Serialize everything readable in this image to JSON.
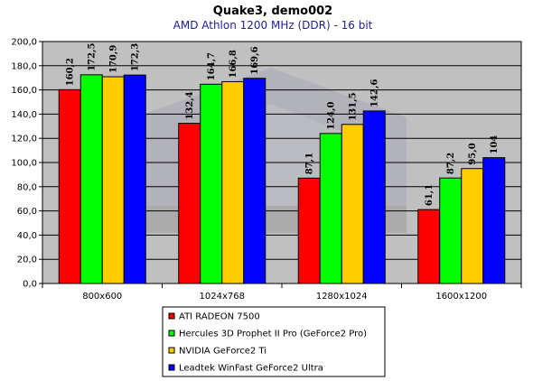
{
  "chart_data": {
    "type": "bar",
    "title": "Quake3, demo002",
    "subtitle": "AMD Athlon 1200 MHz (DDR) - 16 bit",
    "categories": [
      "800x600",
      "1024x768",
      "1280x1024",
      "1600x1200"
    ],
    "ylim": [
      0,
      200
    ],
    "yticks": [
      "0,0",
      "20,0",
      "40,0",
      "60,0",
      "80,0",
      "100,0",
      "120,0",
      "140,0",
      "160,0",
      "180,0",
      "200,0"
    ],
    "grid": true,
    "legend_position": "bottom",
    "series": [
      {
        "name": "ATI RADEON 7500",
        "color": "#ff0000",
        "values": [
          160.2,
          132.4,
          87.1,
          61.1
        ],
        "labels": [
          "160,2",
          "132,4",
          "87,1",
          "61,1"
        ]
      },
      {
        "name": "Hercules 3D Prophet II Pro (GeForce2 Pro)",
        "color": "#00ff00",
        "values": [
          172.5,
          164.7,
          124.0,
          87.2
        ],
        "labels": [
          "172,5",
          "164,7",
          "124,0",
          "87,2"
        ]
      },
      {
        "name": "NVIDIA GeForce2 Ti",
        "color": "#ffcc00",
        "values": [
          170.9,
          166.8,
          131.5,
          95.0
        ],
        "labels": [
          "170,9",
          "166,8",
          "131,5",
          "95,0"
        ]
      },
      {
        "name": "Leadtek WinFast GeForce2 Ultra",
        "color": "#0000ff",
        "values": [
          172.3,
          169.6,
          142.6,
          104
        ],
        "labels": [
          "172,3",
          "169,6",
          "142,6",
          "104"
        ]
      }
    ]
  }
}
